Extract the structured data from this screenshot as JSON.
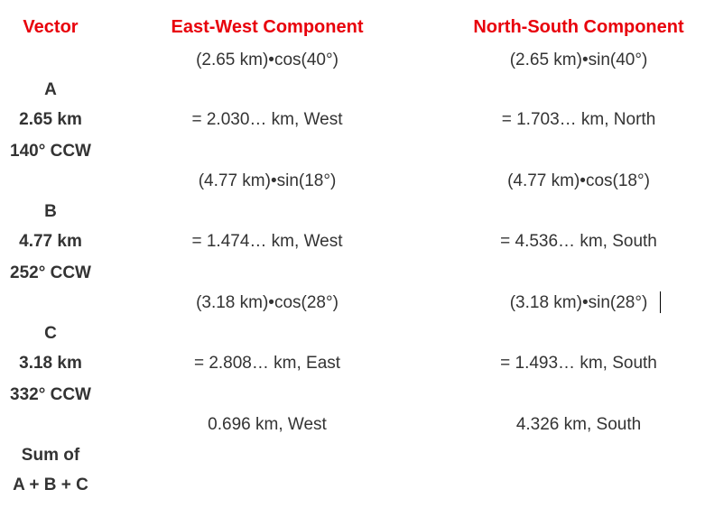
{
  "headers": {
    "vector": "Vector",
    "east_west": "East-West Component",
    "north_south": "North-South Component"
  },
  "rows": [
    {
      "vector_lines": [
        "A",
        "2.65 km",
        "140° CCW"
      ],
      "ew_expr": "(2.65 km)•cos(40°)",
      "ew_result": "= 2.030… km, West",
      "ns_expr": "(2.65 km)•sin(40°)",
      "ns_result": "= 1.703… km, North"
    },
    {
      "vector_lines": [
        "B",
        "4.77 km",
        "252° CCW"
      ],
      "ew_expr": "(4.77 km)•sin(18°)",
      "ew_result": "= 1.474… km, West",
      "ns_expr": "(4.77 km)•cos(18°)",
      "ns_result": "= 4.536… km, South"
    },
    {
      "vector_lines": [
        "C",
        "3.18 km",
        "332° CCW"
      ],
      "ew_expr": "(3.18 km)•cos(28°)",
      "ew_result": "= 2.808… km, East",
      "ns_expr": "(3.18 km)•sin(28°)",
      "ns_result": "= 1.493… km, South"
    }
  ],
  "sum": {
    "vector_lines": [
      "Sum of",
      "A + B + C"
    ],
    "ew": "0.696 km, West",
    "ns": "4.326 km, South"
  },
  "colors": {
    "header": "#e8000b",
    "text": "#333333"
  }
}
